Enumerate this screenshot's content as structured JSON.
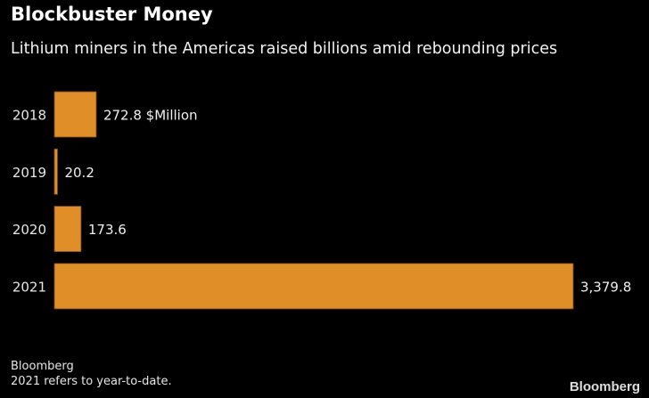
{
  "title": "Blockbuster Money",
  "subtitle": "Lithium miners in the Americas raised billions amid rebounding prices",
  "chart_data": {
    "type": "bar",
    "orientation": "horizontal",
    "categories": [
      "2018",
      "2019",
      "2020",
      "2021"
    ],
    "values": [
      272.8,
      20.2,
      173.6,
      3379.8
    ],
    "labels": [
      "272.8 $Million",
      "20.2",
      "173.6",
      "3,379.8"
    ],
    "unit": "$Million",
    "color": "#e08e27",
    "xlim": [
      0,
      3379.8
    ],
    "grid": false
  },
  "footer": {
    "source": "Bloomberg",
    "note": "2021 refers to year-to-date.",
    "logo": "Bloomberg"
  }
}
